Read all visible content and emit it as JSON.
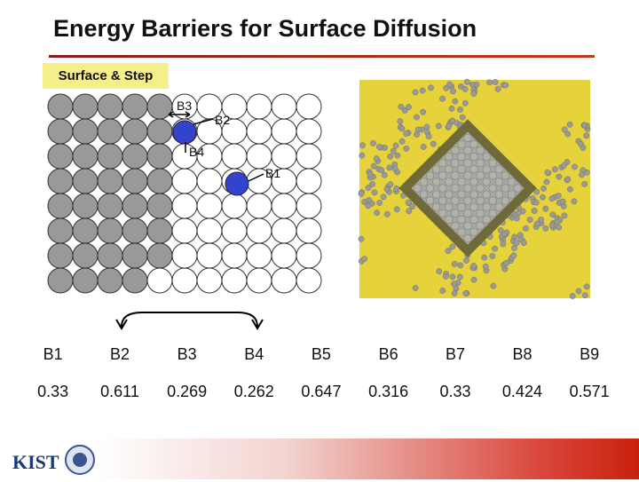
{
  "header": {
    "title": "Energy Barriers for Surface Diffusion"
  },
  "diagram": {
    "caption": "Surface & Step",
    "labels": [
      "B3",
      "B2",
      "B4",
      "B1"
    ]
  },
  "table": {
    "rows": [
      [
        "B1",
        "B2",
        "B3",
        "B4",
        "B5",
        "B6",
        "B7",
        "B8",
        "B9"
      ],
      [
        "0.33",
        "0.611",
        "0.269",
        "0.262",
        "0.647",
        "0.316",
        "0.33",
        "0.424",
        "0.571"
      ]
    ]
  }
}
